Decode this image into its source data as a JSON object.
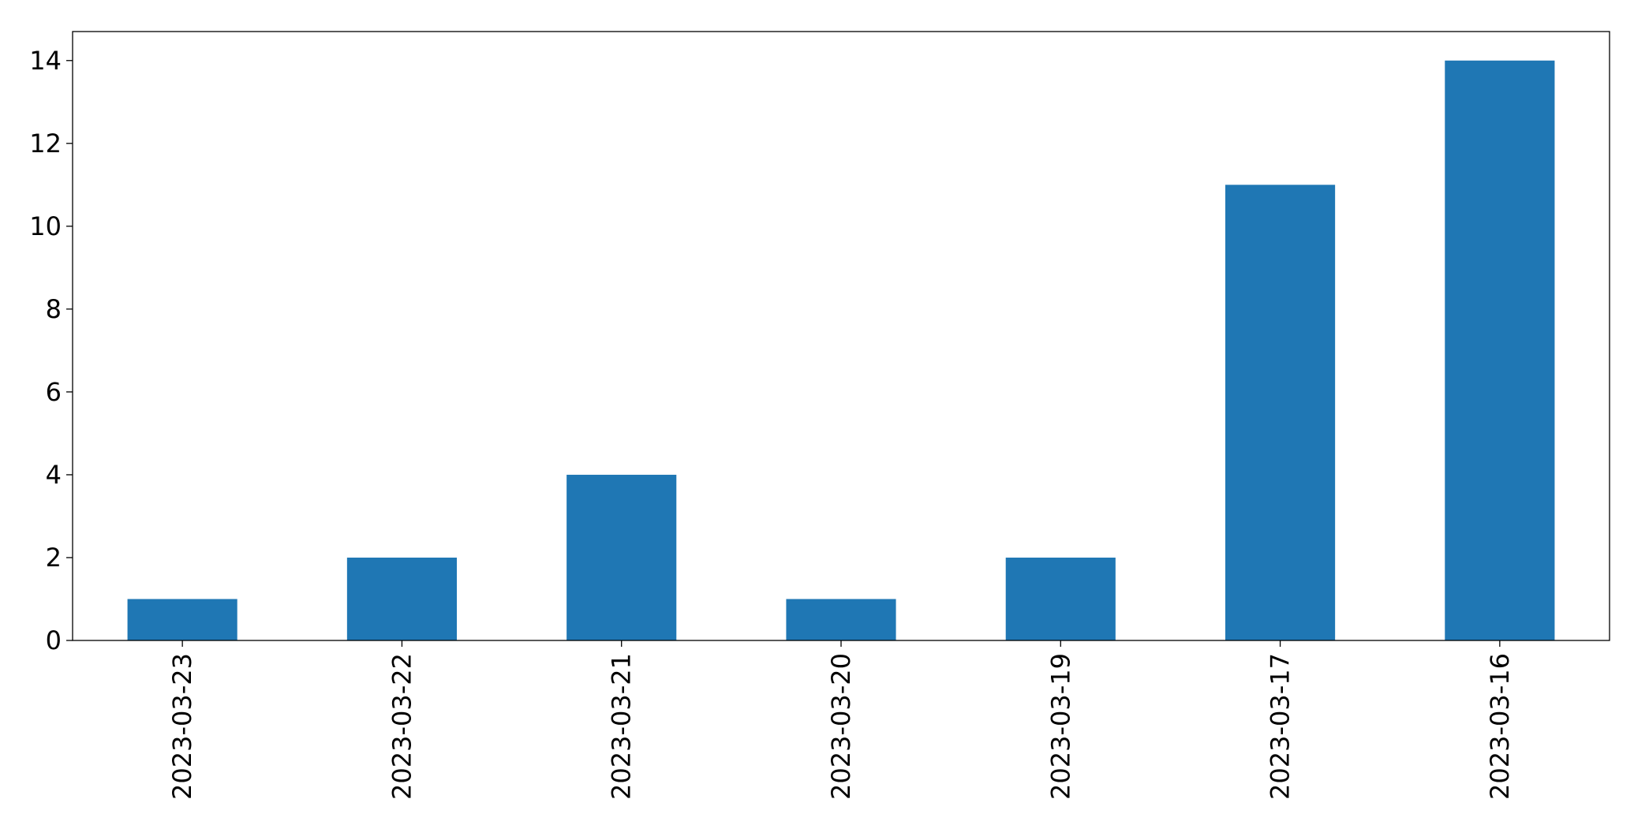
{
  "chart_data": {
    "type": "bar",
    "title": "",
    "xlabel": "",
    "ylabel": "",
    "categories": [
      "2023-03-23",
      "2023-03-22",
      "2023-03-21",
      "2023-03-20",
      "2023-03-19",
      "2023-03-17",
      "2023-03-16"
    ],
    "values": [
      1,
      2,
      4,
      1,
      2,
      11,
      14
    ],
    "ylim": [
      0,
      14.7
    ],
    "yticks": [
      0,
      2,
      4,
      6,
      8,
      10,
      12,
      14
    ],
    "bar_color": "#1f77b4",
    "grid": false,
    "legend": "none",
    "x_tick_rotation": "vertical"
  }
}
